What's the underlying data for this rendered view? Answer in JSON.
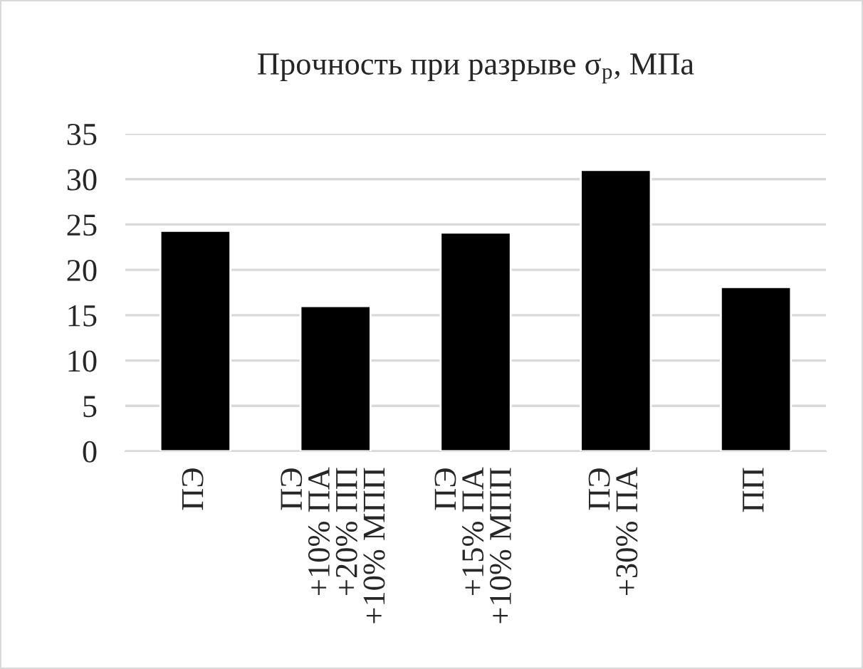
{
  "chart_data": {
    "type": "bar",
    "title": "Прочность при разрыве σ$_{р}$, МПа",
    "categories": [
      "ПЭ",
      "ПЭ\n+10% ПА\n+20% ПП\n+10% МПП",
      "ПЭ\n+15% ПА\n+10% МПП",
      "ПЭ\n+30% ПА",
      "ПП"
    ],
    "values": [
      24.3,
      16.0,
      24.1,
      31.0,
      18.1
    ],
    "color": "#000000",
    "ylim": [
      0,
      35
    ],
    "yticks": [
      0,
      5,
      10,
      15,
      20,
      25,
      30,
      35
    ],
    "grid": "y"
  }
}
